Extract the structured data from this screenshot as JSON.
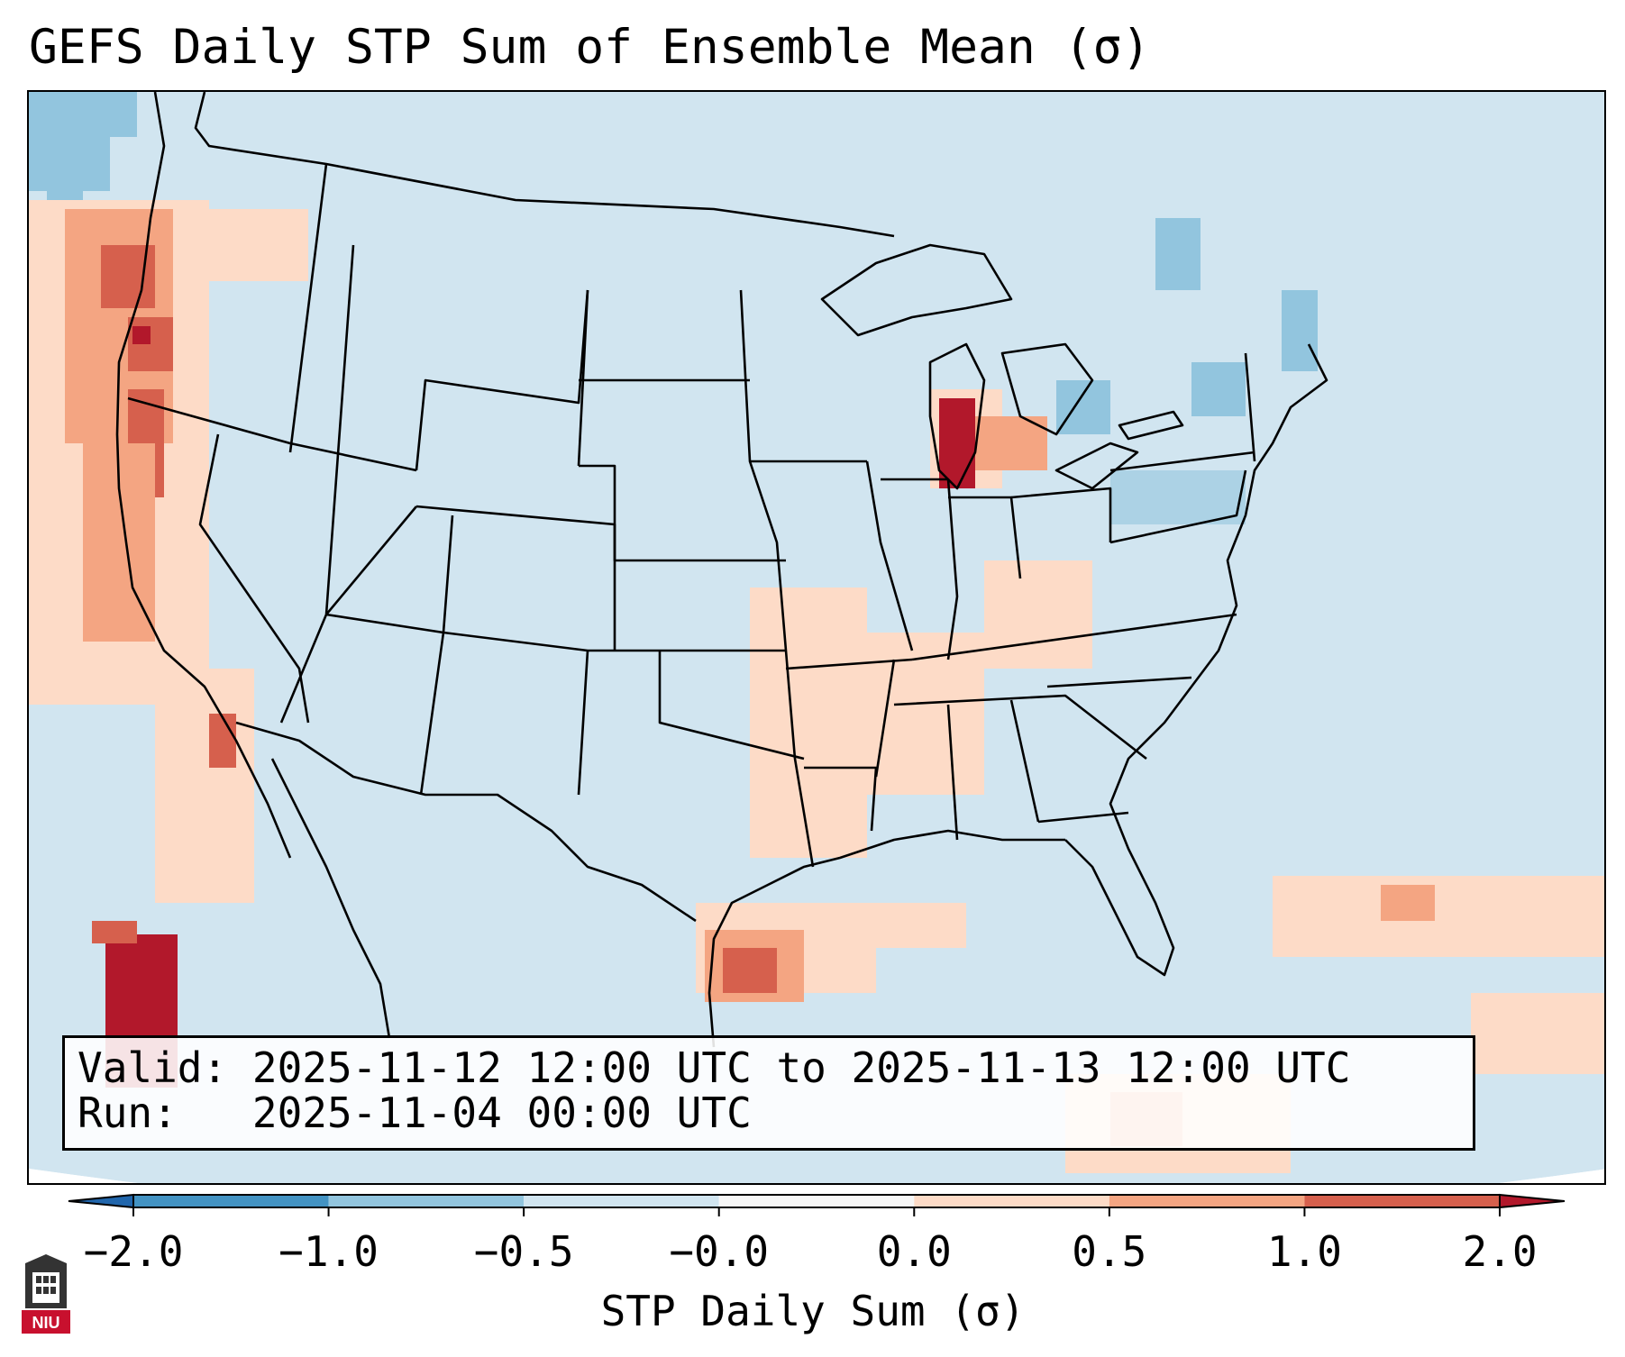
{
  "title": "GEFS Daily STP Sum of Ensemble Mean (σ)",
  "info_box": {
    "valid_label": "Valid:",
    "valid_value": "2025-11-12 12:00 UTC to 2025-11-13 12:00 UTC",
    "run_label": "Run:",
    "run_value": "2025-11-04 00:00 UTC"
  },
  "colorbar": {
    "label": "STP Daily Sum (σ)",
    "ticks": [
      "−2.0",
      "−1.0",
      "−0.5",
      "−0.0",
      "0.0",
      "0.5",
      "1.0",
      "2.0"
    ],
    "bins": [
      {
        "range": "< -2.0",
        "color": "#2166ac"
      },
      {
        "range": "-2.0 to -1.0",
        "color": "#4393c3"
      },
      {
        "range": "-1.0 to -0.5",
        "color": "#92c5de"
      },
      {
        "range": "-0.5 to -0.0",
        "color": "#d1e5f0"
      },
      {
        "range": "-0.0 to 0.0",
        "color": "#f7f7f7"
      },
      {
        "range": "0.0 to 0.5",
        "color": "#fddbc7"
      },
      {
        "range": "0.5 to 1.0",
        "color": "#f4a582"
      },
      {
        "range": "1.0 to 2.0",
        "color": "#d6604d"
      },
      {
        "range": "> 2.0",
        "color": "#b2182b"
      }
    ]
  },
  "map": {
    "background_color": "#d1e5f0",
    "border_color": "#000000"
  },
  "logo": {
    "text": "NIU",
    "color": "#c8102e"
  }
}
